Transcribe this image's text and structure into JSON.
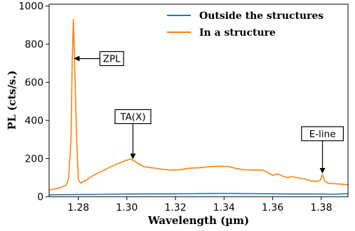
{
  "chart_data": {
    "type": "line",
    "xlabel": "Wavelength (µm)",
    "ylabel": "PL (cts/s.)",
    "xlim": [
      1.268,
      1.391
    ],
    "ylim": [
      0,
      1010
    ],
    "x_ticks": [
      1.28,
      1.3,
      1.32,
      1.34,
      1.36,
      1.38
    ],
    "x_tick_labels": [
      "1.28",
      "1.30",
      "1.32",
      "1.34",
      "1.36",
      "1.38"
    ],
    "y_ticks": [
      0,
      200,
      400,
      600,
      800,
      1000
    ],
    "y_tick_labels": [
      "0",
      "200",
      "400",
      "600",
      "800",
      "1000"
    ],
    "grid": false,
    "legend_position": "top-right",
    "series": [
      {
        "name": "Outside the structures",
        "color": "#1f77b4",
        "x": [
          1.268,
          1.275,
          1.28,
          1.285,
          1.29,
          1.3,
          1.31,
          1.32,
          1.33,
          1.34,
          1.35,
          1.36,
          1.37,
          1.38,
          1.385,
          1.391
        ],
        "y": [
          10,
          11,
          12,
          12,
          13,
          14,
          15,
          15,
          16,
          17,
          16,
          15,
          14,
          14,
          13,
          16
        ]
      },
      {
        "name": "In a structure",
        "color": "#ff7f0e",
        "x": [
          1.268,
          1.272,
          1.275,
          1.276,
          1.277,
          1.2775,
          1.278,
          1.2785,
          1.279,
          1.2795,
          1.28,
          1.281,
          1.283,
          1.286,
          1.29,
          1.293,
          1.296,
          1.299,
          1.3015,
          1.303,
          1.305,
          1.307,
          1.31,
          1.314,
          1.318,
          1.322,
          1.326,
          1.33,
          1.334,
          1.338,
          1.342,
          1.345,
          1.348,
          1.352,
          1.356,
          1.36,
          1.362,
          1.364,
          1.366,
          1.368,
          1.37,
          1.372,
          1.374,
          1.376,
          1.378,
          1.3795,
          1.3805,
          1.3815,
          1.383,
          1.386,
          1.389,
          1.391
        ],
        "y": [
          35,
          45,
          60,
          95,
          300,
          700,
          930,
          700,
          450,
          250,
          90,
          72,
          85,
          110,
          135,
          155,
          172,
          188,
          198,
          188,
          172,
          158,
          152,
          145,
          140,
          142,
          150,
          152,
          158,
          160,
          158,
          148,
          142,
          140,
          140,
          112,
          120,
          108,
          100,
          105,
          100,
          95,
          90,
          82,
          80,
          85,
          115,
          82,
          70,
          68,
          65,
          62
        ]
      }
    ],
    "annotations": [
      {
        "text": "ZPL",
        "x": 1.2785,
        "y": 725
      },
      {
        "text": "TA(X)",
        "x": 1.3025,
        "y": 200
      },
      {
        "text": "E-line",
        "x": 1.3805,
        "y": 125
      }
    ]
  }
}
